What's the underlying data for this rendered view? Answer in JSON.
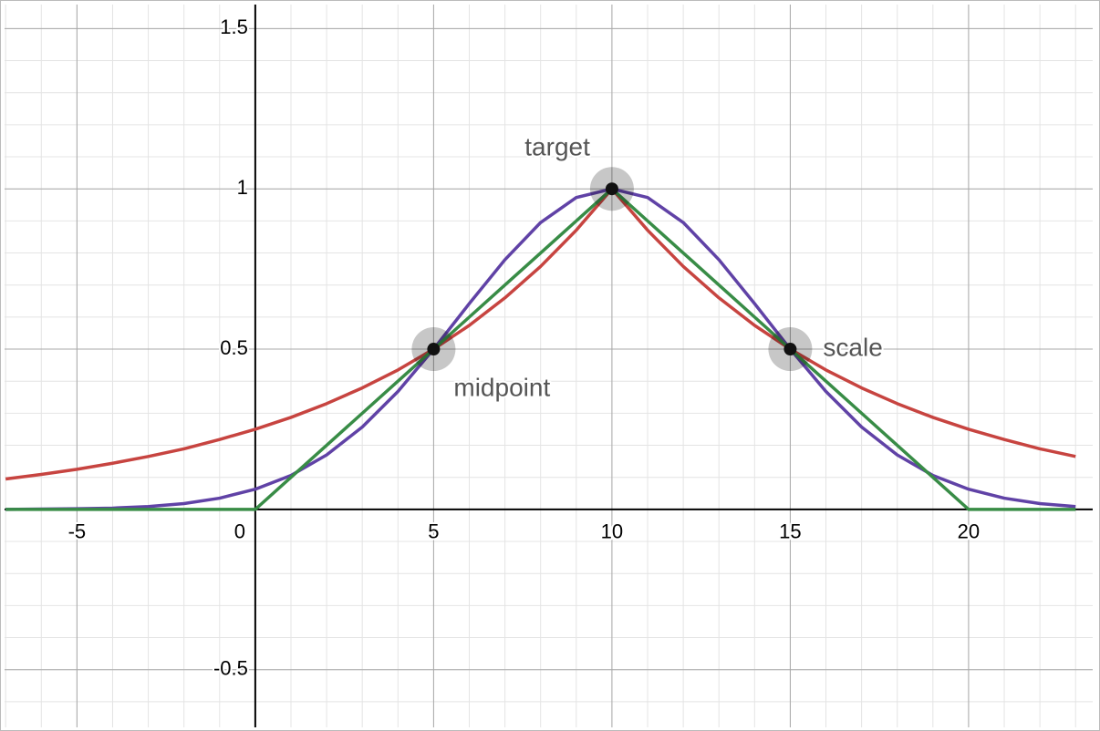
{
  "chart_data": {
    "type": "line",
    "x": [
      -7,
      -6,
      -5,
      -4,
      -3,
      -2,
      -1,
      0,
      1,
      2,
      3,
      4,
      5,
      6,
      7,
      8,
      9,
      10,
      11,
      12,
      13,
      14,
      15,
      16,
      17,
      18,
      19,
      20,
      21,
      22,
      23
    ],
    "series": [
      {
        "color": "#c74440",
        "values": [
          0.095,
          0.109,
          0.125,
          0.144,
          0.165,
          0.189,
          0.218,
          0.25,
          0.287,
          0.33,
          0.379,
          0.435,
          0.5,
          0.574,
          0.66,
          0.758,
          0.871,
          1,
          0.871,
          0.758,
          0.66,
          0.574,
          0.5,
          0.435,
          0.379,
          0.33,
          0.287,
          0.25,
          0.218,
          0.189,
          0.165
        ]
      },
      {
        "color": "#6042a6",
        "values": [
          0,
          0.001,
          0.002,
          0.004,
          0.009,
          0.018,
          0.035,
          0.063,
          0.106,
          0.17,
          0.257,
          0.368,
          0.5,
          0.642,
          0.779,
          0.895,
          0.973,
          1,
          0.973,
          0.895,
          0.779,
          0.642,
          0.5,
          0.368,
          0.257,
          0.17,
          0.106,
          0.063,
          0.035,
          0.018,
          0.009
        ]
      },
      {
        "color": "#388c46",
        "values": [
          0,
          0,
          0,
          0,
          0,
          0,
          0,
          0,
          0.1,
          0.2,
          0.3,
          0.4,
          0.5,
          0.6,
          0.7,
          0.8,
          0.9,
          1,
          0.9,
          0.8,
          0.7,
          0.6,
          0.5,
          0.4,
          0.3,
          0.2,
          0.1,
          0,
          0,
          0,
          0
        ]
      }
    ],
    "points": [
      {
        "x": 5,
        "y": 0.5,
        "label": "midpoint"
      },
      {
        "x": 10,
        "y": 1,
        "label": "target"
      },
      {
        "x": 15,
        "y": 0.5,
        "label": "scale"
      }
    ],
    "xlim": [
      -7.03,
      23.48
    ],
    "ylim": [
      -0.68,
      1.575
    ],
    "xticks": [
      -5,
      0,
      5,
      10,
      15,
      20
    ],
    "yticks": [
      -0.5,
      0.5,
      1,
      1.5
    ],
    "grid": true,
    "minor_grid": {
      "x": 1,
      "y": 0.1
    }
  }
}
